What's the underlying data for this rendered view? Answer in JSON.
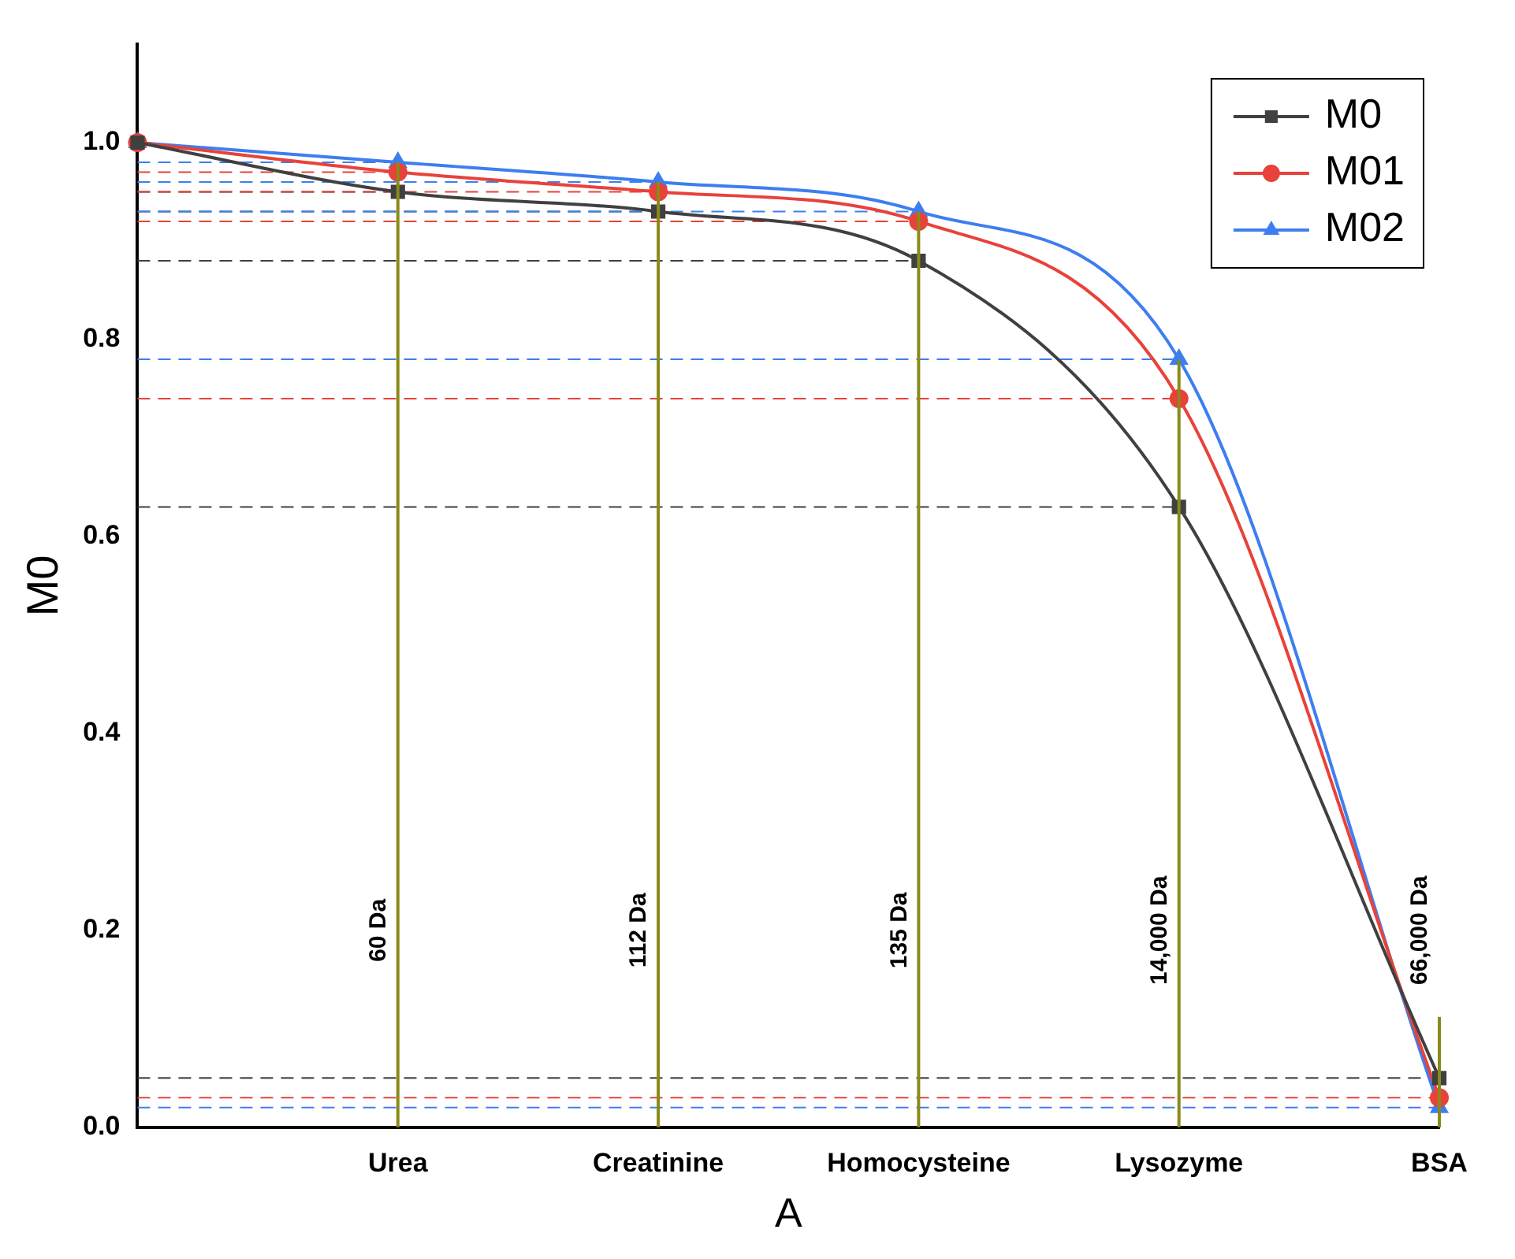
{
  "chart_data": {
    "type": "line",
    "xlabel": "A",
    "ylabel": "M0",
    "categories": [
      null,
      "Urea",
      "Creatinine",
      "Homocysteine",
      "Lysozyme",
      "BSA"
    ],
    "series": [
      {
        "name": "M0",
        "color": "#404040",
        "marker": "square",
        "values": [
          1.0,
          0.95,
          0.93,
          0.88,
          0.63,
          0.05
        ]
      },
      {
        "name": "M01",
        "color": "#e8423a",
        "marker": "circle",
        "values": [
          1.0,
          0.97,
          0.95,
          0.92,
          0.74,
          0.03
        ]
      },
      {
        "name": "M02",
        "color": "#3d7ef0",
        "marker": "triangle",
        "values": [
          1.0,
          0.98,
          0.96,
          0.93,
          0.78,
          0.02
        ]
      }
    ],
    "ylim": [
      0,
      1.1
    ],
    "yticks": [
      {
        "value": 0,
        "label": "0.0"
      },
      {
        "value": 0.2,
        "label": "0.2"
      },
      {
        "value": 0.4,
        "label": "0.4"
      },
      {
        "value": 0.6,
        "label": "0.6"
      },
      {
        "value": 0.8,
        "label": "0.8"
      },
      {
        "value": 1.0,
        "label": "1.0"
      }
    ],
    "ref_lines": [
      {
        "axis": "x",
        "value": "Urea",
        "label": "60 Da",
        "color": "#8a8a1a"
      },
      {
        "axis": "x",
        "value": "Creatinine",
        "label": "112 Da",
        "color": "#8a8a1a"
      },
      {
        "axis": "x",
        "value": "Homocysteine",
        "label": "135 Da",
        "color": "#8a8a1a"
      },
      {
        "axis": "x",
        "value": "Lysozyme",
        "label": "14,000 Da",
        "color": "#8a8a1a"
      },
      {
        "axis": "x",
        "value": "BSA",
        "label": "66,000 Da",
        "color": "#8a8a1a"
      },
      {
        "axis": "y",
        "value": 0.95,
        "color": "#404040",
        "line_style": "dashed"
      },
      {
        "axis": "y",
        "value": 0.93,
        "color": "#404040",
        "line_style": "dashed"
      },
      {
        "axis": "y",
        "value": 0.88,
        "color": "#404040",
        "line_style": "dashed"
      },
      {
        "axis": "y",
        "value": 0.63,
        "color": "#404040",
        "line_style": "dashed"
      },
      {
        "axis": "y",
        "value": 0.05,
        "color": "#404040",
        "line_style": "dashed"
      },
      {
        "axis": "y",
        "value": 0.97,
        "color": "#e8423a",
        "line_style": "dashed"
      },
      {
        "axis": "y",
        "value": 0.95,
        "color": "#e8423a",
        "line_style": "dashed"
      },
      {
        "axis": "y",
        "value": 0.92,
        "color": "#e8423a",
        "line_style": "dashed"
      },
      {
        "axis": "y",
        "value": 0.74,
        "color": "#e8423a",
        "line_style": "dashed"
      },
      {
        "axis": "y",
        "value": 0.03,
        "color": "#e8423a",
        "line_style": "dashed"
      },
      {
        "axis": "y",
        "value": 0.98,
        "color": "#3d7ef0",
        "line_style": "dashed"
      },
      {
        "axis": "y",
        "value": 0.96,
        "color": "#3d7ef0",
        "line_style": "dashed"
      },
      {
        "axis": "y",
        "value": 0.93,
        "color": "#3d7ef0",
        "line_style": "dashed"
      },
      {
        "axis": "y",
        "value": 0.78,
        "color": "#3d7ef0",
        "line_style": "dashed"
      },
      {
        "axis": "y",
        "value": 0.02,
        "color": "#3d7ef0",
        "line_style": "dashed"
      }
    ],
    "grid": false,
    "legend": "top right",
    "line_style": "solid"
  }
}
